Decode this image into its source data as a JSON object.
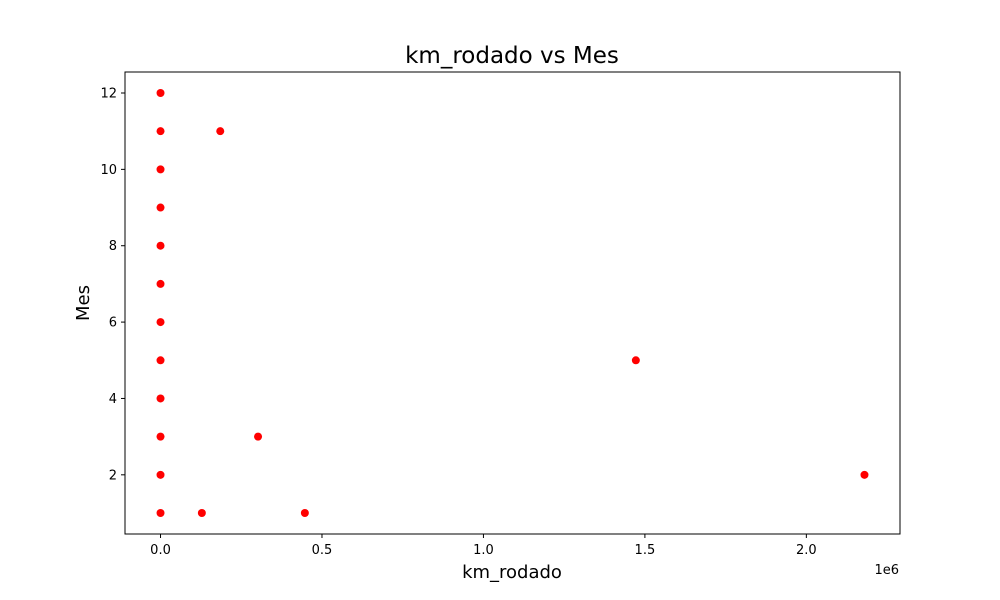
{
  "chart_data": {
    "type": "scatter",
    "title": "km_rodado vs Mes",
    "xlabel": "km_rodado",
    "ylabel": "Mes",
    "x_offset_label": "1e6",
    "xlim": [
      -110000,
      2290000
    ],
    "ylim": [
      0.45,
      12.55
    ],
    "x_ticks": [
      {
        "value": 0,
        "label": "0.0"
      },
      {
        "value": 500000,
        "label": "0.5"
      },
      {
        "value": 1000000,
        "label": "1.0"
      },
      {
        "value": 1500000,
        "label": "1.5"
      },
      {
        "value": 2000000,
        "label": "2.0"
      }
    ],
    "y_ticks": [
      {
        "value": 2,
        "label": "2"
      },
      {
        "value": 4,
        "label": "4"
      },
      {
        "value": 6,
        "label": "6"
      },
      {
        "value": 8,
        "label": "8"
      },
      {
        "value": 10,
        "label": "10"
      },
      {
        "value": 12,
        "label": "12"
      }
    ],
    "marker_color": "#ff0000",
    "grid": false,
    "legend": "none",
    "points": [
      {
        "x": 0,
        "y": 12
      },
      {
        "x": 0,
        "y": 11
      },
      {
        "x": 185000,
        "y": 11
      },
      {
        "x": 0,
        "y": 10
      },
      {
        "x": 0,
        "y": 9
      },
      {
        "x": 0,
        "y": 8
      },
      {
        "x": 0,
        "y": 7
      },
      {
        "x": 0,
        "y": 6
      },
      {
        "x": 0,
        "y": 5
      },
      {
        "x": 1472000,
        "y": 5
      },
      {
        "x": 0,
        "y": 4
      },
      {
        "x": 0,
        "y": 3
      },
      {
        "x": 302000,
        "y": 3
      },
      {
        "x": 0,
        "y": 2
      },
      {
        "x": 2180000,
        "y": 2
      },
      {
        "x": 0,
        "y": 1
      },
      {
        "x": 128000,
        "y": 1
      },
      {
        "x": 447000,
        "y": 1
      }
    ]
  }
}
